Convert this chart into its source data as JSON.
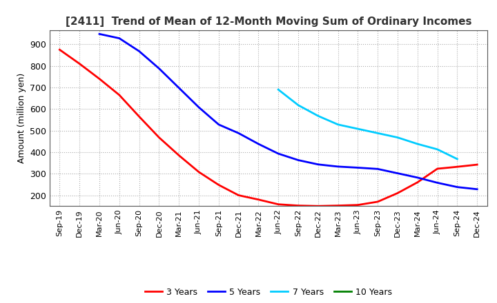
{
  "title": "[2411]  Trend of Mean of 12-Month Moving Sum of Ordinary Incomes",
  "ylabel": "Amount (million yen)",
  "background_color": "#ffffff",
  "grid_color": "#aaaaaa",
  "ylim": [
    150,
    965
  ],
  "yticks": [
    200,
    300,
    400,
    500,
    600,
    700,
    800,
    900
  ],
  "x_labels": [
    "Sep-19",
    "Dec-19",
    "Mar-20",
    "Jun-20",
    "Sep-20",
    "Dec-20",
    "Mar-21",
    "Jun-21",
    "Sep-21",
    "Dec-21",
    "Mar-22",
    "Jun-22",
    "Sep-22",
    "Dec-22",
    "Mar-23",
    "Jun-23",
    "Sep-23",
    "Dec-23",
    "Mar-24",
    "Jun-24",
    "Sep-24",
    "Dec-24"
  ],
  "series": [
    {
      "label": "3 Years",
      "color": "#ff0000",
      "data": [
        875,
        810,
        740,
        665,
        565,
        468,
        385,
        308,
        248,
        200,
        180,
        158,
        152,
        150,
        152,
        155,
        170,
        210,
        260,
        323,
        332,
        342
      ]
    },
    {
      "label": "5 Years",
      "color": "#0000ff",
      "data": [
        null,
        null,
        948,
        928,
        868,
        788,
        698,
        608,
        528,
        488,
        438,
        393,
        363,
        343,
        333,
        328,
        322,
        302,
        282,
        258,
        238,
        228
      ]
    },
    {
      "label": "7 Years",
      "color": "#00ccff",
      "data": [
        null,
        null,
        null,
        null,
        null,
        null,
        null,
        null,
        null,
        null,
        null,
        690,
        618,
        568,
        528,
        508,
        488,
        468,
        438,
        413,
        368,
        null
      ]
    },
    {
      "label": "10 Years",
      "color": "#008000",
      "data": [
        null,
        null,
        null,
        null,
        null,
        null,
        null,
        null,
        null,
        null,
        null,
        null,
        null,
        null,
        null,
        null,
        null,
        null,
        null,
        null,
        null,
        null
      ]
    }
  ]
}
